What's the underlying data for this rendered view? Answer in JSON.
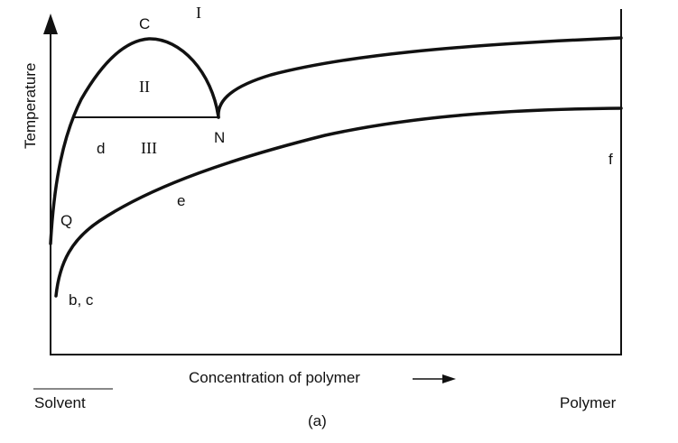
{
  "diagram": {
    "y_axis_label": "Temperature",
    "x_axis_label": "Concentration of polymer",
    "left_end_label": "Solvent",
    "right_end_label": "Polymer",
    "caption": "(a)",
    "region_labels": {
      "I": "I",
      "II": "II",
      "III": "III"
    },
    "point_labels": {
      "C": "C",
      "N": "N",
      "Q": "Q",
      "d": "d",
      "e": "e",
      "f": "f",
      "bc": "b, c"
    }
  }
}
